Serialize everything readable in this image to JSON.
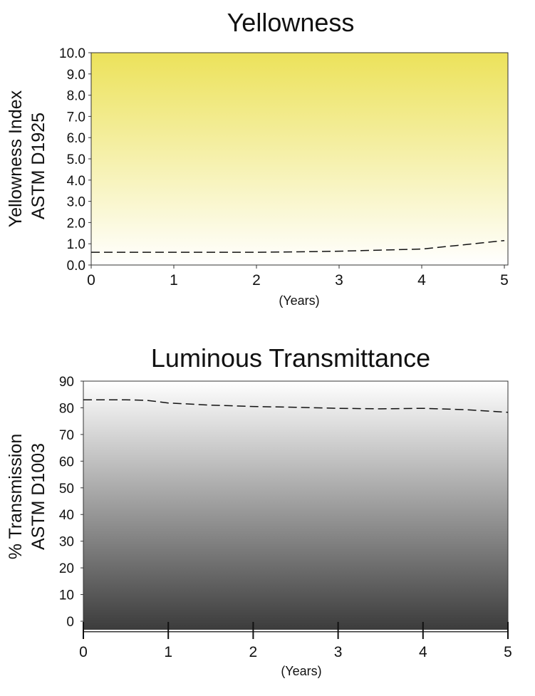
{
  "chart_data": [
    {
      "type": "line",
      "title": "Yellowness",
      "ylabel_lines": [
        "Yellowness Index",
        "ASTM D1925"
      ],
      "xlabel": "(Years)",
      "xlim": [
        0,
        5
      ],
      "ylim": [
        0,
        10
      ],
      "x_ticks": [
        "0",
        "1",
        "2",
        "3",
        "4",
        "5"
      ],
      "y_ticks": [
        "0.0",
        "1.0",
        "2.0",
        "3.0",
        "4.0",
        "5.0",
        "6.0",
        "7.0",
        "8.0",
        "9.0",
        "10.0"
      ],
      "line_style": "dashed",
      "background_gradient": [
        "#ece25a",
        "#ffffff"
      ],
      "x": [
        0,
        0.5,
        1,
        1.5,
        2,
        2.5,
        3,
        3.5,
        4,
        4.5,
        5
      ],
      "y": [
        0.6,
        0.6,
        0.6,
        0.6,
        0.6,
        0.62,
        0.65,
        0.7,
        0.75,
        0.95,
        1.15
      ]
    },
    {
      "type": "line",
      "title": "Luminous Transmittance",
      "ylabel_lines": [
        "% Transmission",
        "ASTM D1003"
      ],
      "xlabel": "(Years)",
      "xlim": [
        0,
        5
      ],
      "ylim": [
        -4,
        90
      ],
      "x_ticks": [
        "0",
        "1",
        "2",
        "3",
        "4",
        "5"
      ],
      "y_ticks": [
        "0",
        "10",
        "20",
        "30",
        "40",
        "50",
        "60",
        "70",
        "80",
        "90"
      ],
      "line_style": "dashed",
      "background_gradient": [
        "#ffffff",
        "#3a3a3a"
      ],
      "x": [
        0,
        0.5,
        0.75,
        1,
        1.5,
        2,
        2.5,
        3,
        3.5,
        4,
        4.5,
        5
      ],
      "y": [
        83,
        83,
        82.8,
        81.8,
        81,
        80.5,
        80.2,
        79.8,
        79.6,
        79.8,
        79.3,
        78.3
      ]
    }
  ]
}
